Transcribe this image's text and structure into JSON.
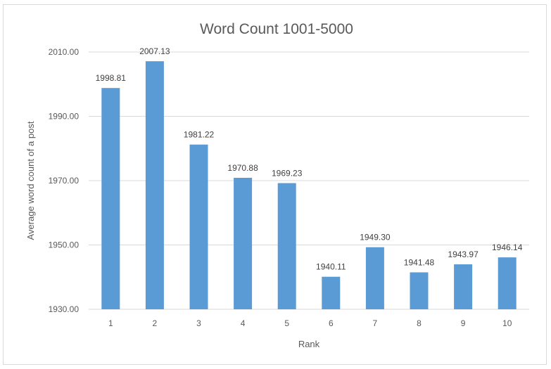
{
  "chart_data": {
    "type": "bar",
    "title": "Word Count 1001-5000",
    "xlabel": "Rank",
    "ylabel": "Average word count of a post",
    "categories": [
      "1",
      "2",
      "3",
      "4",
      "5",
      "6",
      "7",
      "8",
      "9",
      "10"
    ],
    "values": [
      1998.81,
      2007.13,
      1981.22,
      1970.88,
      1969.23,
      1940.11,
      1949.3,
      1941.48,
      1943.97,
      1946.14
    ],
    "value_labels": [
      "1998.81",
      "2007.13",
      "1981.22",
      "1970.88",
      "1969.23",
      "1940.11",
      "1949.30",
      "1941.48",
      "1943.97",
      "1946.14"
    ],
    "ylim": [
      1930,
      2010
    ],
    "yticks": [
      1930,
      1950,
      1970,
      1990,
      2010
    ],
    "ytick_labels": [
      "1930.00",
      "1950.00",
      "1970.00",
      "1990.00",
      "2010.00"
    ],
    "grid": true,
    "legend": "none",
    "bar_color": "#5b9bd5"
  }
}
